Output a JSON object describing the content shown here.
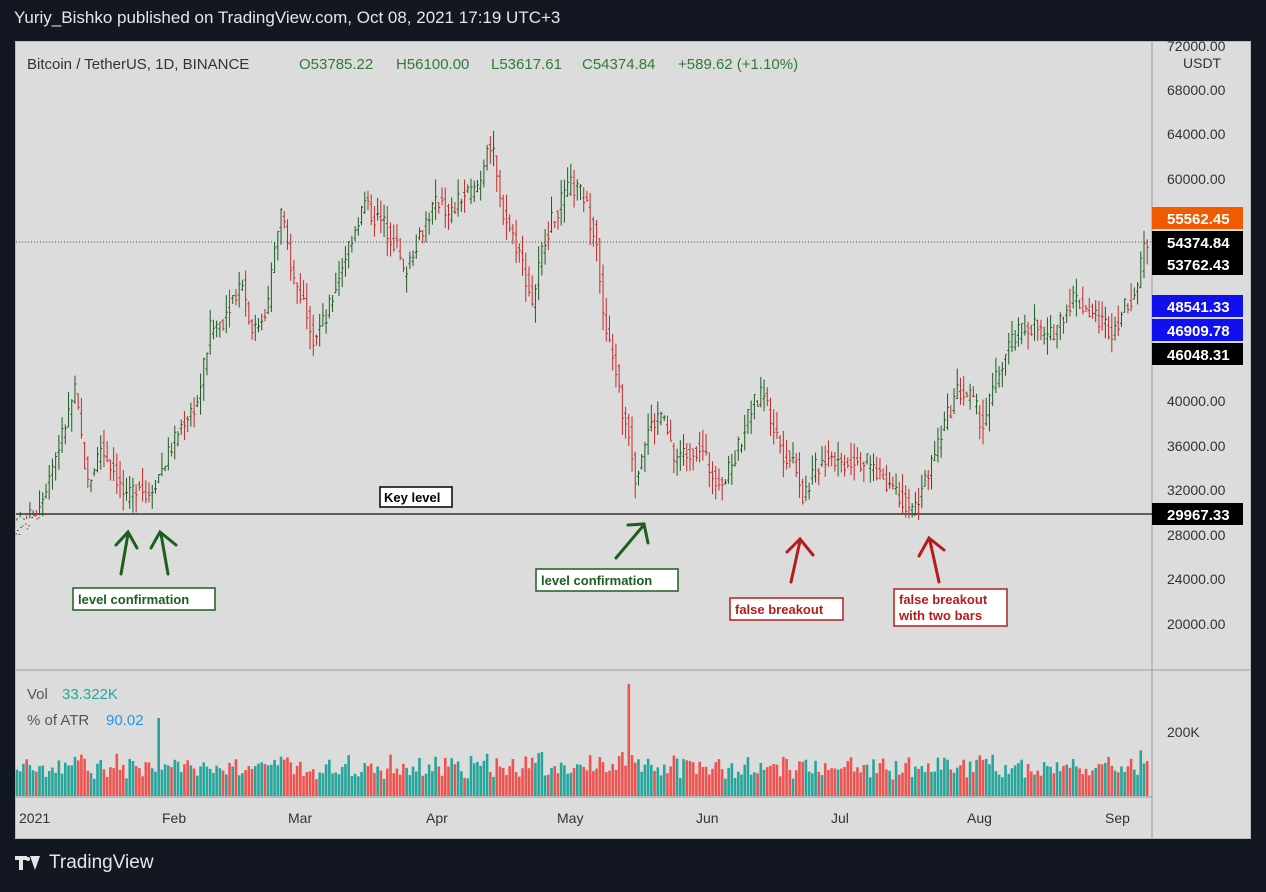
{
  "header": {
    "text": "Yuriy_Bishko published on TradingView.com, Oct 08, 2021 17:19 UTC+3"
  },
  "legend": {
    "symbol": "Bitcoin / TetherUS, 1D, BINANCE",
    "open": "O53785.22",
    "high": "H56100.00",
    "low": "L53617.61",
    "close": "C54374.84",
    "change": "+589.62 (+1.10%)"
  },
  "price_axis": {
    "currency": "USDT",
    "ticks": [
      "72000.00",
      "68000.00",
      "64000.00",
      "60000.00",
      "40000.00",
      "36000.00",
      "32000.00",
      "28000.00",
      "24000.00",
      "20000.00"
    ]
  },
  "price_labels": [
    {
      "text": "55562.45",
      "bg": "#f05a00",
      "fg": "#ffffff",
      "value": 55562.45
    },
    {
      "text": "54374.84",
      "bg": "#000000",
      "fg": "#ffffff",
      "value": 54374.84
    },
    {
      "text": "53762.43",
      "bg": "#000000",
      "fg": "#ffffff",
      "value": 53762.43
    },
    {
      "text": "48541.33",
      "bg": "#1010ee",
      "fg": "#ffffff",
      "value": 48541.33
    },
    {
      "text": "46909.78",
      "bg": "#1010ee",
      "fg": "#ffffff",
      "value": 46909.78
    },
    {
      "text": "46048.31",
      "bg": "#000000",
      "fg": "#ffffff",
      "value": 46048.31
    },
    {
      "text": "29967.33",
      "bg": "#000000",
      "fg": "#ffffff",
      "value": 29967.33
    }
  ],
  "volume_pane": {
    "vol_label": "Vol",
    "vol_value": "33.322K",
    "atr_label": "% of ATR",
    "atr_value": "90.02",
    "axis_tick": "200K"
  },
  "time_axis": [
    "2021",
    "Feb",
    "Mar",
    "Apr",
    "May",
    "Jun",
    "Jul",
    "Aug",
    "Sep"
  ],
  "annotations": [
    {
      "text": "Key level",
      "color": "#000000"
    },
    {
      "text": "level confirmation",
      "color": "#1b5e20"
    },
    {
      "text": "level confirmation",
      "color": "#1b5e20"
    },
    {
      "text": "false breakout",
      "color": "#b71c1c"
    },
    {
      "text": "false breakout\nwith two bars",
      "color": "#b71c1c"
    }
  ],
  "footer": {
    "brand": "TradingView"
  },
  "colors": {
    "up": "#1b5e20",
    "down": "#c62828",
    "vol_up": "#26a69a",
    "vol_down": "#ef5350"
  },
  "chart_data": {
    "type": "ohlc-bar",
    "symbol": "BTCUSDT",
    "timeframe": "1D",
    "y_range": [
      18000,
      74000
    ],
    "key_level": 29967.33,
    "last_close": 54374.84,
    "months": [
      "2021",
      "Feb",
      "Mar",
      "Apr",
      "May",
      "Jun",
      "Jul",
      "Aug",
      "Sep"
    ],
    "price_path": [
      [
        0,
        28500
      ],
      [
        6,
        30000
      ],
      [
        10,
        33500
      ],
      [
        14,
        37000
      ],
      [
        18,
        41000
      ],
      [
        22,
        32500
      ],
      [
        26,
        36000
      ],
      [
        30,
        34000
      ],
      [
        34,
        31000
      ],
      [
        38,
        33000
      ],
      [
        40,
        31500
      ],
      [
        44,
        33500
      ],
      [
        48,
        36000
      ],
      [
        52,
        38500
      ],
      [
        56,
        40000
      ],
      [
        60,
        46500
      ],
      [
        64,
        47500
      ],
      [
        66,
        49000
      ],
      [
        70,
        51000
      ],
      [
        72,
        47500
      ],
      [
        74,
        46500
      ],
      [
        78,
        49000
      ],
      [
        80,
        54000
      ],
      [
        82,
        57000
      ],
      [
        86,
        51000
      ],
      [
        90,
        48500
      ],
      [
        92,
        46000
      ],
      [
        96,
        47500
      ],
      [
        100,
        51500
      ],
      [
        104,
        55000
      ],
      [
        108,
        58000
      ],
      [
        110,
        57000
      ],
      [
        114,
        56000
      ],
      [
        118,
        54000
      ],
      [
        120,
        51500
      ],
      [
        124,
        54500
      ],
      [
        128,
        57000
      ],
      [
        132,
        58500
      ],
      [
        134,
        56500
      ],
      [
        138,
        58500
      ],
      [
        142,
        59000
      ],
      [
        144,
        60000
      ],
      [
        146,
        63500
      ],
      [
        148,
        62000
      ],
      [
        150,
        58000
      ],
      [
        152,
        56500
      ],
      [
        156,
        53500
      ],
      [
        160,
        49000
      ],
      [
        164,
        55000
      ],
      [
        168,
        57500
      ],
      [
        172,
        59500
      ],
      [
        176,
        58500
      ],
      [
        178,
        56500
      ],
      [
        180,
        55000
      ],
      [
        182,
        47500
      ],
      [
        184,
        45000
      ],
      [
        186,
        43000
      ],
      [
        188,
        39000
      ],
      [
        190,
        37500
      ],
      [
        192,
        33500
      ],
      [
        196,
        37500
      ],
      [
        200,
        39000
      ],
      [
        204,
        35000
      ],
      [
        208,
        35500
      ],
      [
        212,
        36000
      ],
      [
        216,
        33500
      ],
      [
        220,
        33000
      ],
      [
        224,
        36000
      ],
      [
        228,
        39500
      ],
      [
        232,
        41000
      ],
      [
        234,
        38500
      ],
      [
        238,
        35500
      ],
      [
        242,
        34500
      ],
      [
        244,
        31500
      ],
      [
        248,
        34000
      ],
      [
        252,
        35500
      ],
      [
        256,
        34500
      ],
      [
        260,
        35000
      ],
      [
        264,
        34500
      ],
      [
        268,
        33500
      ],
      [
        272,
        32500
      ],
      [
        276,
        31000
      ],
      [
        278,
        29800
      ],
      [
        280,
        31500
      ],
      [
        284,
        34500
      ],
      [
        288,
        38000
      ],
      [
        292,
        41000
      ],
      [
        296,
        40500
      ],
      [
        300,
        38000
      ],
      [
        304,
        42000
      ],
      [
        308,
        45000
      ],
      [
        312,
        46500
      ],
      [
        316,
        47000
      ],
      [
        320,
        45500
      ],
      [
        324,
        47500
      ],
      [
        328,
        49500
      ],
      [
        332,
        48500
      ],
      [
        336,
        47500
      ],
      [
        340,
        46500
      ],
      [
        344,
        48500
      ],
      [
        348,
        50500
      ],
      [
        350,
        54000
      ],
      [
        351,
        54374
      ]
    ],
    "events": [
      {
        "label": "level confirmation",
        "days": [
          34,
          40
        ]
      },
      {
        "label": "level confirmation",
        "days": [
          192
        ]
      },
      {
        "label": "false breakout",
        "days": [
          244
        ]
      },
      {
        "label": "false breakout with two bars",
        "days": [
          277,
          278
        ]
      }
    ]
  }
}
